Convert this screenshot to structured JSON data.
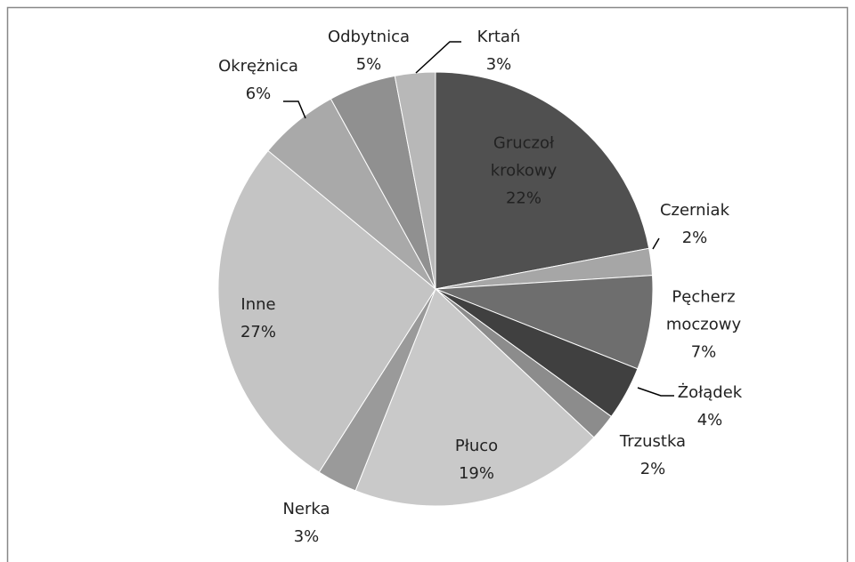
{
  "chart_data": {
    "type": "pie",
    "categories": [
      "Gruczoł krokowy",
      "Czerniak",
      "Pęcherz moczowy",
      "Żołądek",
      "Trzustka",
      "Płuco",
      "Nerka",
      "Inne",
      "Okrężnica",
      "Odbytnica",
      "Krtań"
    ],
    "values": [
      22,
      2,
      7,
      4,
      2,
      19,
      3,
      27,
      6,
      5,
      3
    ],
    "value_labels": [
      "22%",
      "2%",
      "7%",
      "4%",
      "2%",
      "19%",
      "3%",
      "27%",
      "6%",
      "5%",
      "3%"
    ],
    "colors": [
      "#505050",
      "#a6a6a6",
      "#6e6e6e",
      "#404040",
      "#8c8c8c",
      "#c9c9c9",
      "#9a9a9a",
      "#c4c4c4",
      "#a9a9a9",
      "#909090",
      "#b8b8b8"
    ]
  }
}
